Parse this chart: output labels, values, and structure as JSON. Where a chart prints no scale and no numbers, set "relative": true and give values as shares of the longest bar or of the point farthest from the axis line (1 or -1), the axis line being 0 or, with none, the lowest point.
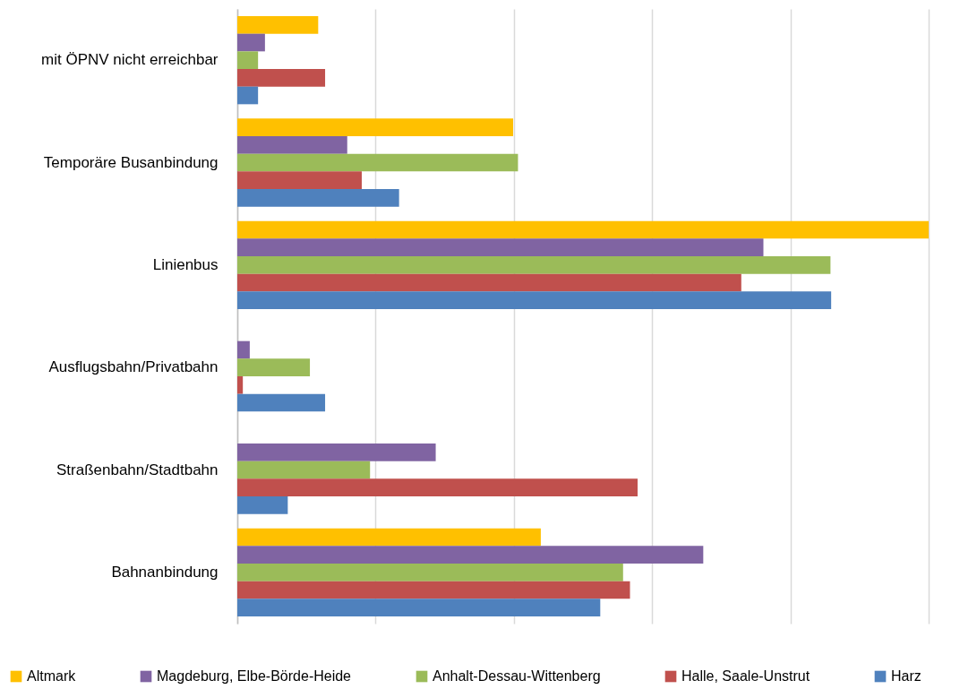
{
  "chart_data": {
    "type": "bar",
    "orientation": "horizontal",
    "relative": true,
    "grid": "x",
    "legend": "bottom",
    "categories": [
      "mit ÖPNV nicht erreichbar",
      "Temporäre Busanbindung",
      "Linienbus",
      "Ausflugsbahn/Privatbahn",
      "Straßenbahn/Stadtbahn",
      "Bahnanbindung"
    ],
    "series": [
      {
        "name": "Altmark",
        "color": "#ffc000",
        "values": [
          0.117,
          0.399,
          1,
          null,
          null,
          0.439
        ]
      },
      {
        "name": "Magdeburg, Elbe-Börde-Heide",
        "color": "#8064a2",
        "values": [
          0.04,
          0.159,
          0.761,
          0.018,
          0.287,
          0.674
        ]
      },
      {
        "name": "Anhalt-Dessau-Wittenberg",
        "color": "#9bbb59",
        "values": [
          0.03,
          0.406,
          0.858,
          0.105,
          0.192,
          0.558
        ]
      },
      {
        "name": "Halle, Saale-Unstrut",
        "color": "#c0504d",
        "values": [
          0.127,
          0.18,
          0.729,
          0.008,
          0.579,
          0.568
        ]
      },
      {
        "name": "Harz",
        "color": "#4f81bd",
        "values": [
          0.03,
          0.234,
          0.859,
          0.127,
          0.073,
          0.525
        ]
      }
    ]
  }
}
